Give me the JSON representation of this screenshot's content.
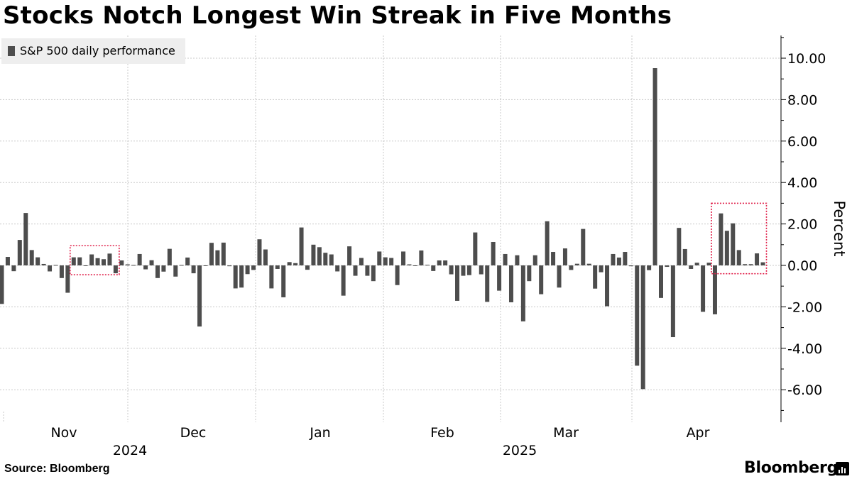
{
  "title": "Stocks Notch Longest Win Streak in Five Months",
  "source": "Source: Bloomberg",
  "brand": "Bloomberg",
  "brand_icon": "bloomberg-bars-icon",
  "colors": {
    "bar": "#4d4d4d",
    "highlight": "#e0204a",
    "grid": "#c8c8c8",
    "legend_bg": "#eeeeee"
  },
  "chart_data": {
    "type": "bar",
    "title": "Stocks Notch Longest Win Streak in Five Months",
    "legend": [
      "S&P 500 daily performance"
    ],
    "legend_position": "top-left",
    "ylabel": "Percent",
    "y_axis_side": "right",
    "ylim": [
      -7.5,
      11.0
    ],
    "yticks": [
      -6,
      -4,
      -2,
      0,
      2,
      4,
      6,
      8,
      10
    ],
    "ytick_labels": [
      "-6.00",
      "-4.00",
      "-2.00",
      "0.00",
      "2.00",
      "4.00",
      "6.00",
      "8.00",
      "10.00"
    ],
    "grid": true,
    "x_month_labels": [
      "Nov",
      "Dec",
      "Jan",
      "Feb",
      "Mar",
      "Apr"
    ],
    "x_year_labels": [
      "2024",
      "2025"
    ],
    "series": [
      {
        "name": "S&P 500 daily performance",
        "values": [
          -1.86,
          0.41,
          -0.28,
          1.23,
          2.53,
          0.74,
          0.39,
          0.07,
          -0.29,
          0.02,
          -0.61,
          -1.32,
          0.39,
          0.39,
          -0.02,
          0.53,
          0.35,
          0.3,
          0.57,
          -0.38,
          0.24,
          0.05,
          0.02,
          0.55,
          -0.19,
          0.25,
          -0.61,
          -0.3,
          0.8,
          -0.54,
          0.02,
          0.38,
          -0.38,
          -2.95,
          0.0,
          1.09,
          0.73,
          1.1,
          -0.04,
          -1.11,
          -1.07,
          -0.42,
          -0.22,
          1.26,
          0.77,
          -1.11,
          -0.17,
          -1.54,
          0.16,
          0.11,
          1.83,
          -0.21,
          1.0,
          0.88,
          0.61,
          0.53,
          -0.29,
          -1.46,
          0.92,
          -0.5,
          0.36,
          -0.5,
          -0.76,
          0.67,
          0.39,
          0.36,
          -0.95,
          0.67,
          0.05,
          -0.01,
          0.72,
          0.03,
          -0.27,
          0.24,
          0.24,
          -0.43,
          -1.71,
          -0.5,
          -0.47,
          1.59,
          -0.43,
          -1.76,
          1.13,
          -1.22,
          0.55,
          -1.78,
          0.49,
          -2.7,
          -0.76,
          0.49,
          -1.39,
          2.13,
          0.65,
          -1.07,
          0.82,
          -0.22,
          0.08,
          1.76,
          0.08,
          -1.12,
          -0.33,
          -1.97,
          0.55,
          0.38,
          0.65,
          -0.04,
          -4.84,
          -5.97,
          -0.23,
          9.52,
          -1.57,
          -0.07,
          -3.46,
          1.81,
          0.79,
          -0.17,
          0.13,
          -2.24,
          0.13,
          -2.36,
          2.51,
          1.67,
          2.03,
          0.74,
          0.06,
          0.06,
          0.58,
          0.15
        ]
      }
    ]
  }
}
